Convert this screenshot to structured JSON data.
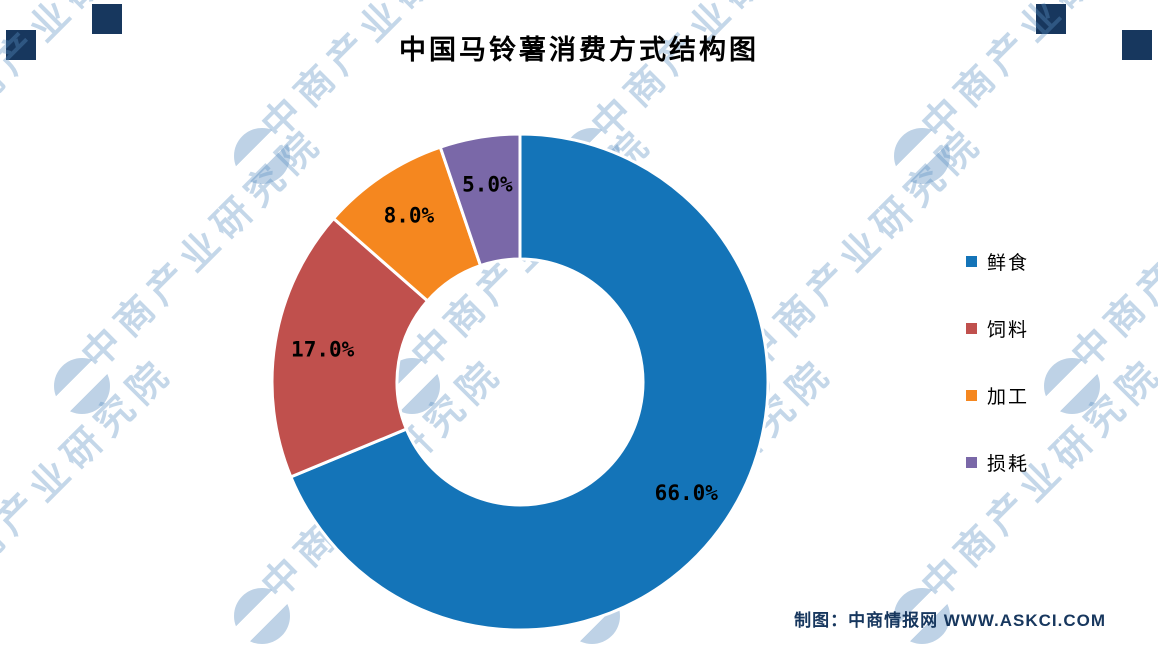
{
  "title": "中国马铃薯消费方式结构图",
  "watermark": {
    "text": "中商产业研究院"
  },
  "footer": {
    "credit": "制图：中商情报网 WWW.ASKCI.COM"
  },
  "chart_data": {
    "type": "pie",
    "subtype": "donut",
    "title": "中国马铃薯消费方式结构图",
    "labels": [
      "鲜食",
      "饲料",
      "加工",
      "损耗"
    ],
    "values": [
      66.0,
      17.0,
      8.0,
      5.0
    ],
    "value_labels": [
      "66.0%",
      "17.0%",
      "8.0%",
      "5.0%"
    ],
    "colors": [
      "#1474b8",
      "#c0504d",
      "#f5871f",
      "#7a68a8"
    ],
    "legend_position": "right",
    "start_angle_deg": 0,
    "direction": "clockwise",
    "inner_radius_ratio": 0.5,
    "grid": false
  }
}
